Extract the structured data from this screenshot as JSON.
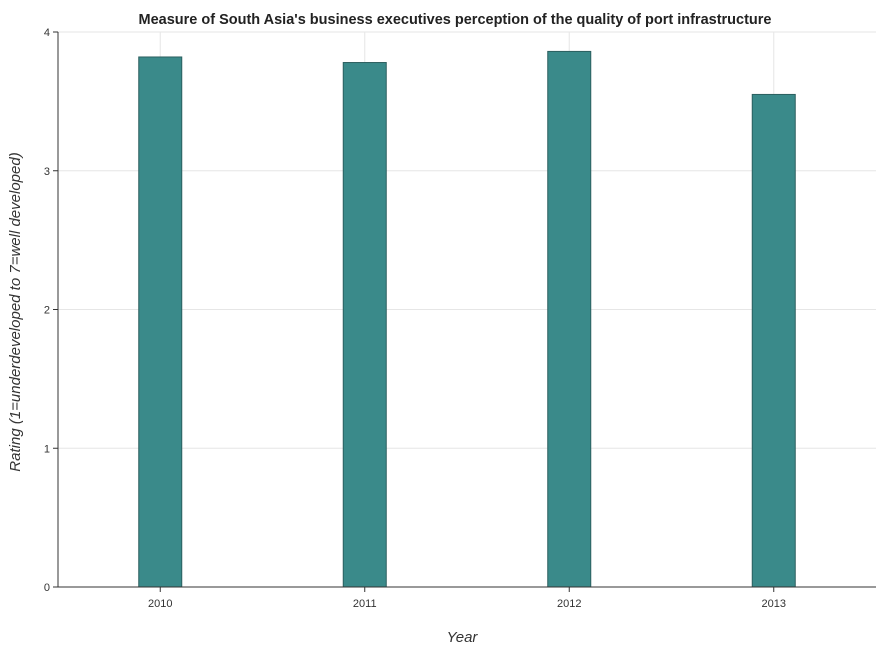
{
  "chart_data": {
    "type": "bar",
    "title": "Measure of South Asia's business executives perception of the quality of port infrastructure",
    "xlabel": "Year",
    "ylabel": "Rating (1=underdeveloped to 7=well developed)",
    "categories": [
      "2010",
      "2011",
      "2012",
      "2013"
    ],
    "values": [
      3.82,
      3.78,
      3.86,
      3.55
    ],
    "ylim": [
      0,
      4
    ],
    "yticks": [
      "0",
      "1",
      "2",
      "3",
      "4"
    ],
    "grid": true,
    "colors": {
      "bar_fill": "#3a8a8a",
      "bar_stroke": "#2b5f5f",
      "grid": "#e6e6e6",
      "axis": "#333333"
    }
  }
}
